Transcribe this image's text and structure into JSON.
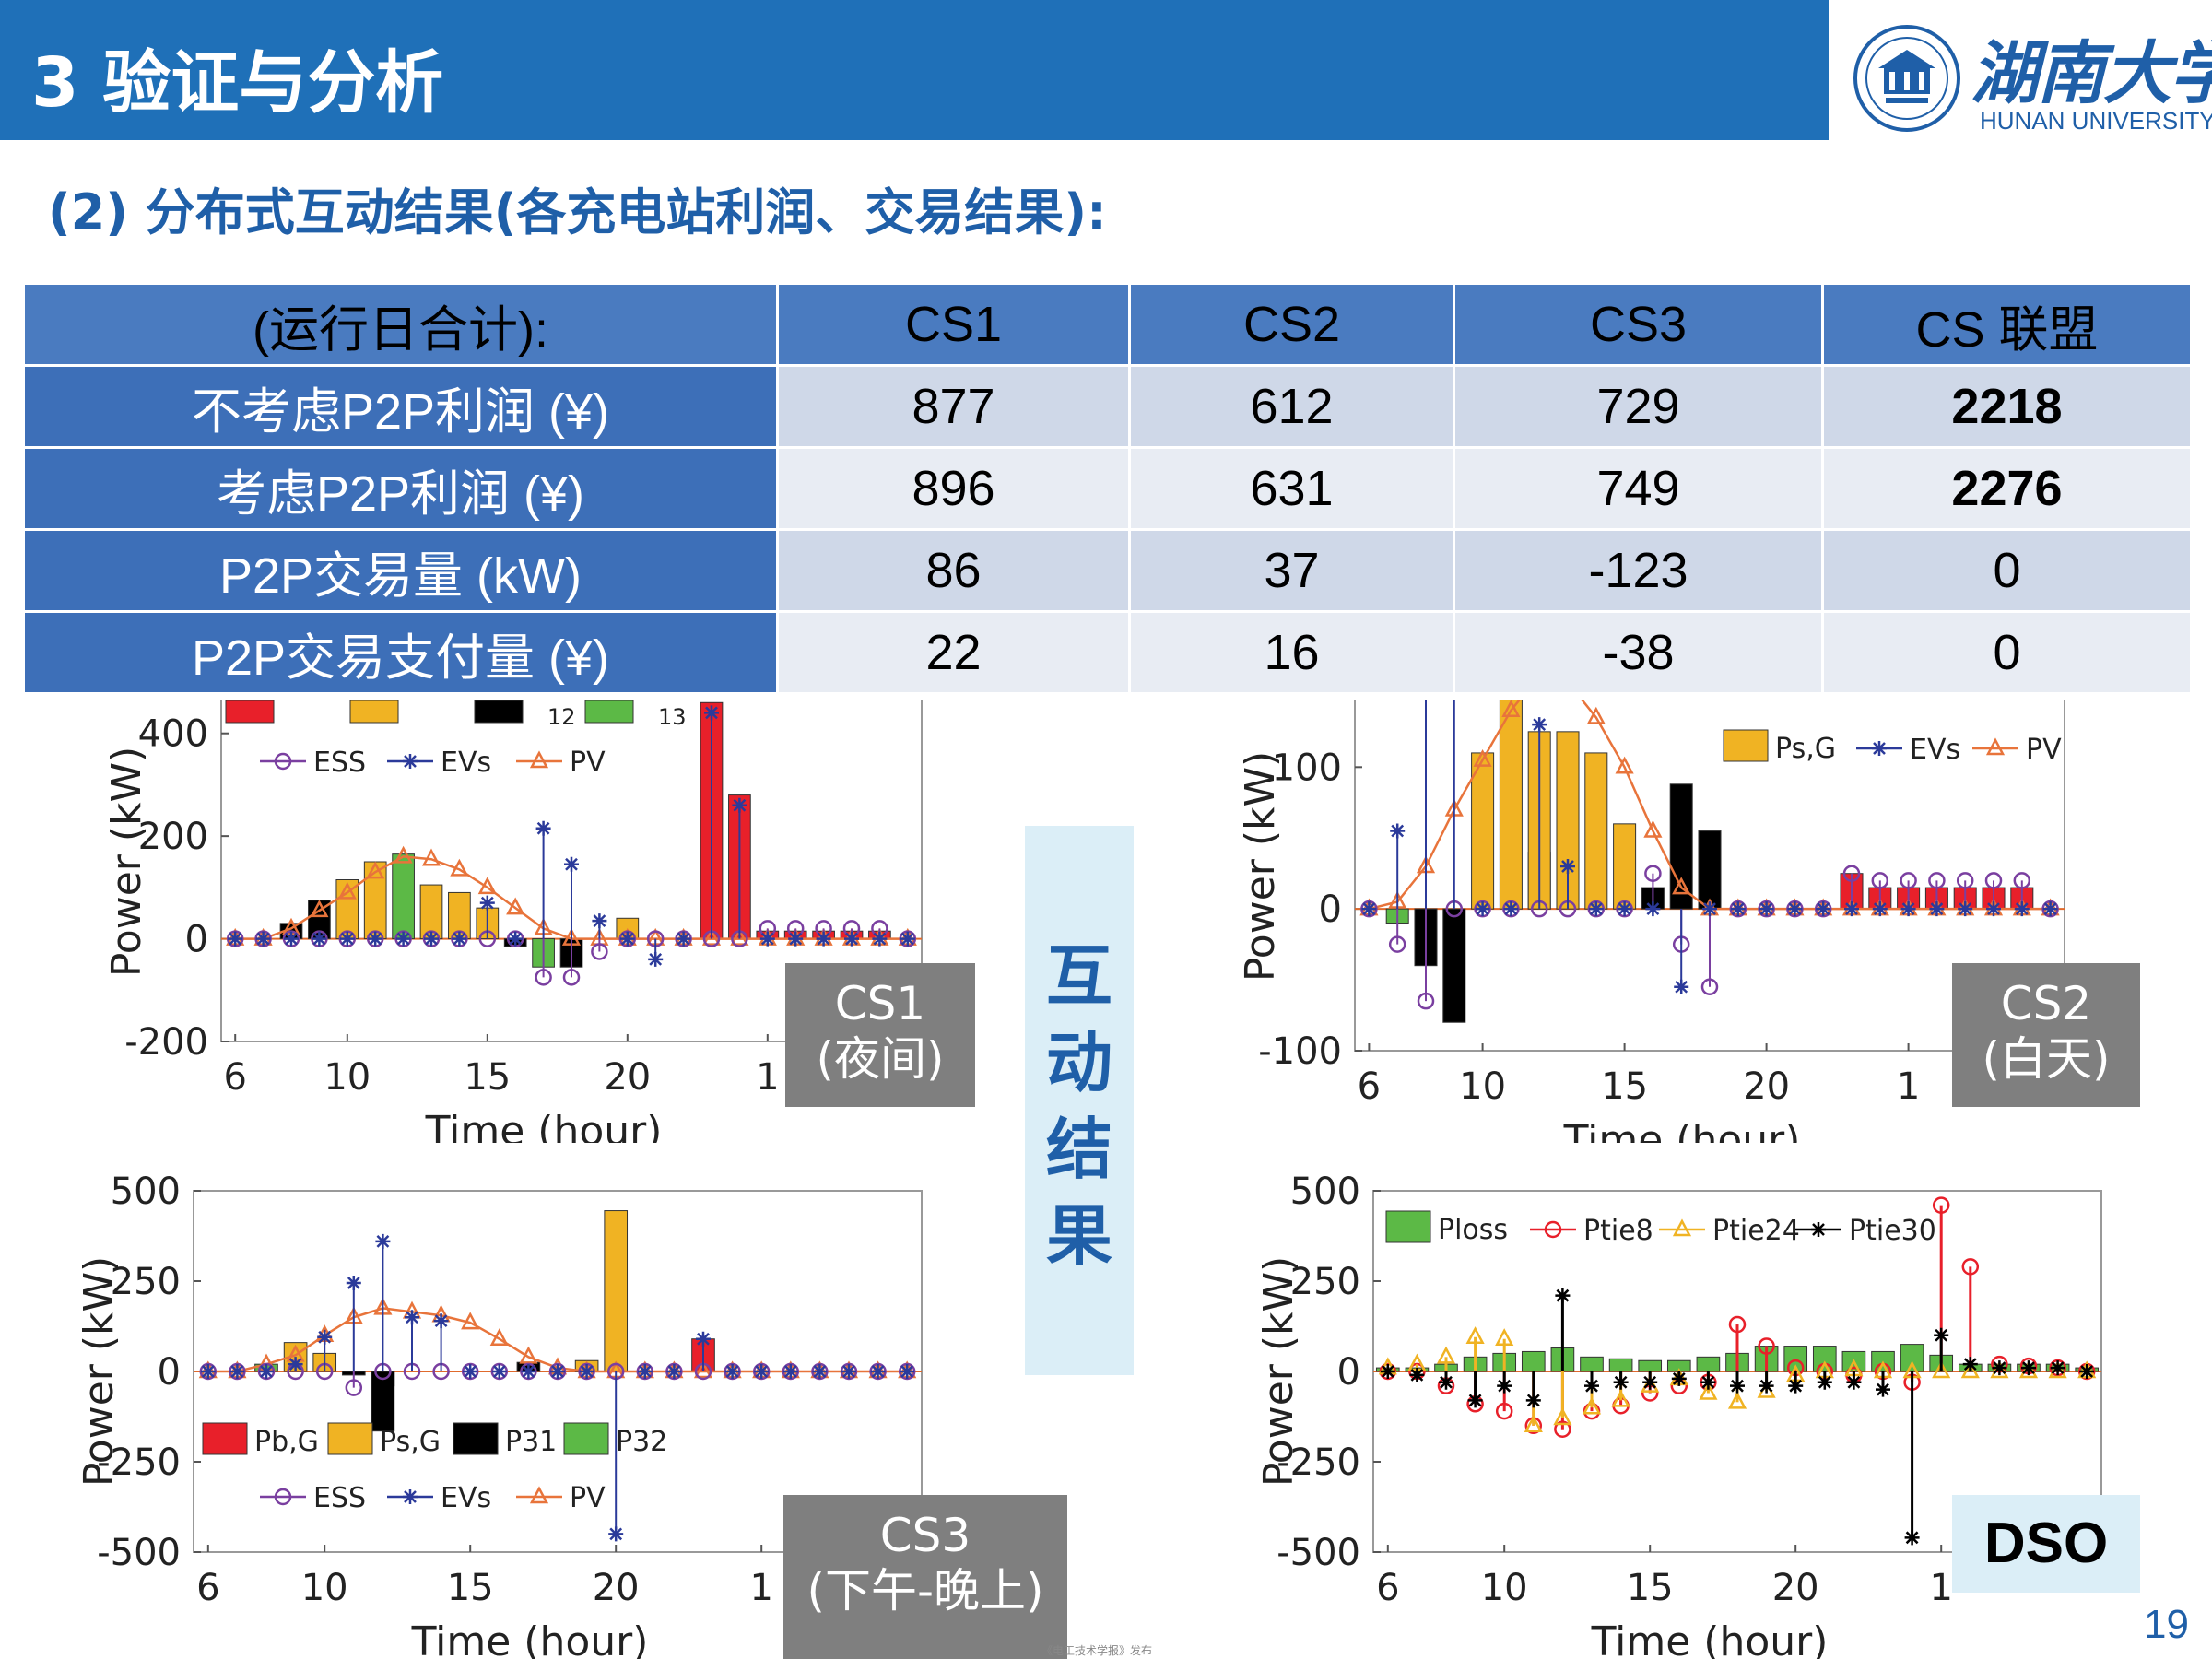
{
  "header": {
    "title": "3 验证与分析"
  },
  "logo": {
    "cn": "湖南大学",
    "en": "HUNAN UNIVERSITY"
  },
  "subtitle": "(2) 分布式互动结果(各充电站利润、交易结果):",
  "table": {
    "columns": [
      "(运行日合计):",
      "CS1",
      "CS2",
      "CS3",
      "CS 联盟"
    ],
    "rows": [
      {
        "label": "不考虑P2P利润 (¥)",
        "values": [
          "877",
          "612",
          "729",
          "2218"
        ]
      },
      {
        "label": "考虑P2P利润 (¥)",
        "values": [
          "896",
          "631",
          "749",
          "2276"
        ]
      },
      {
        "label": "P2P交易量 (kW)",
        "values": [
          "86",
          "37",
          "-123",
          "0"
        ]
      },
      {
        "label": "P2P交易支付量 (¥)",
        "values": [
          "22",
          "16",
          "-38",
          "0"
        ]
      }
    ]
  },
  "center_label": [
    "互",
    "动",
    "结",
    "果"
  ],
  "panels": {
    "cs1": {
      "line1": "CS1",
      "line2": "(夜间)"
    },
    "cs2": {
      "line1": "CS2",
      "line2": "(白天)"
    },
    "cs3": {
      "line1": "CS3",
      "line2": "(下午-晚上)"
    },
    "dso": {
      "label": "DSO"
    }
  },
  "page_number": "19",
  "footer": "《电工技术学报》发布",
  "colors": {
    "header": "#1f70b8",
    "red": "#e8202a",
    "yellow": "#f0b323",
    "black": "#000000",
    "green": "#5cb946",
    "purple": "#7a3fa0",
    "blue": "#2b3a9a",
    "orange": "#e8743b"
  },
  "chart_data": [
    {
      "id": "cs1",
      "type": "bar",
      "xlabel": "Time (hour)",
      "ylabel": "Power (kW)",
      "xticks": [
        "6",
        "10",
        "15",
        "20",
        "1"
      ],
      "yticks": [
        "-200",
        "0",
        "200",
        "400"
      ],
      "ylim": [
        -200,
        500
      ],
      "legend": [
        "ESS",
        "EVs",
        "PV"
      ],
      "legend_partial": [
        "12",
        "13"
      ],
      "hours": [
        6,
        7,
        8,
        9,
        10,
        11,
        12,
        13,
        14,
        15,
        16,
        17,
        18,
        19,
        20,
        21,
        22,
        23,
        24,
        25,
        26,
        27,
        28,
        29,
        30
      ],
      "bars": {
        "black": {
          "8": 30,
          "9": 75,
          "16": -15,
          "18": -55
        },
        "yellow": {
          "10": 115,
          "11": 150,
          "13": 105,
          "14": 90,
          "15": 60,
          "20": 40
        },
        "green": {
          "12": 165,
          "17": -55
        },
        "red": {
          "23": 460,
          "24": 280,
          "25": 15,
          "26": 15,
          "27": 15,
          "28": 15,
          "29": 15
        }
      },
      "ess": {
        "17": -75,
        "18": -75,
        "19": -25,
        "25": 20,
        "26": 20,
        "27": 20,
        "28": 20,
        "29": 20
      },
      "evs": {
        "15": 70,
        "17": 215,
        "18": 145,
        "19": 35,
        "21": -40,
        "23": 440,
        "24": 260
      },
      "pv": [
        0,
        0,
        20,
        55,
        90,
        130,
        160,
        155,
        135,
        100,
        60,
        20,
        0,
        0,
        0,
        0,
        0,
        0,
        0,
        0,
        0,
        0,
        0,
        0,
        0
      ]
    },
    {
      "id": "cs2",
      "type": "bar",
      "xlabel": "Time (hour)",
      "ylabel": "Power (kW)",
      "xticks": [
        "6",
        "10",
        "15",
        "20",
        "1"
      ],
      "yticks": [
        "-100",
        "0",
        "100"
      ],
      "ylim": [
        -100,
        160
      ],
      "legend": [
        "Ps,G",
        "EVs",
        "PV"
      ],
      "hours": [
        6,
        7,
        8,
        9,
        10,
        11,
        12,
        13,
        14,
        15,
        16,
        17,
        18,
        19,
        20,
        21,
        22,
        23,
        24,
        25,
        26,
        27,
        28,
        29,
        30
      ],
      "bars": {
        "green": {
          "7": -10,
          "8": -35,
          "12": 40
        },
        "black": {
          "8": -40,
          "9": -80,
          "16": 15,
          "17": 88,
          "18": 55
        },
        "yellow": {
          "10": 110,
          "11": 160,
          "12": 125,
          "13": 125,
          "14": 110,
          "15": 60
        },
        "red": {
          "23": 25,
          "24": 15,
          "25": 15,
          "26": 15,
          "27": 15,
          "28": 15,
          "29": 15
        }
      },
      "ess": {
        "7": -25,
        "8": -65,
        "17": -25,
        "18": -55,
        "16": 25,
        "23": 25,
        "24": 20,
        "25": 20,
        "26": 20,
        "27": 20,
        "28": 20,
        "29": 20
      },
      "evs": {
        "7": 55,
        "8": 160,
        "9": 160,
        "12": 130,
        "13": 30,
        "17": -55
      },
      "pv": [
        0,
        5,
        30,
        70,
        105,
        140,
        165,
        160,
        135,
        100,
        55,
        15,
        0,
        0,
        0,
        0,
        0,
        0,
        0,
        0,
        0,
        0,
        0,
        0,
        0
      ]
    },
    {
      "id": "cs3",
      "type": "bar",
      "xlabel": "Time (hour)",
      "ylabel": "Power (kW)",
      "xticks": [
        "6",
        "10",
        "15",
        "20",
        "1"
      ],
      "yticks": [
        "-500",
        "-250",
        "0",
        "250",
        "500"
      ],
      "ylim": [
        -500,
        500
      ],
      "legend": [
        "Pb,G",
        "Ps,G",
        "P31",
        "P32",
        "ESS",
        "EVs",
        "PV"
      ],
      "hours": [
        6,
        7,
        8,
        9,
        10,
        11,
        12,
        13,
        14,
        15,
        16,
        17,
        18,
        19,
        20,
        21,
        22,
        23,
        24,
        25,
        26,
        27,
        28,
        29,
        30
      ],
      "bars": {
        "yellow": {
          "9": 80,
          "10": 50,
          "19": 30,
          "20": 445
        },
        "green": {
          "8": 20,
          "12": -40
        },
        "black": {
          "11": -10,
          "12": -165,
          "17": 25
        },
        "red": {
          "23": 90
        }
      },
      "ess": {
        "11": -45
      },
      "evs": {
        "9": 20,
        "10": 95,
        "11": 245,
        "12": 360,
        "13": 150,
        "14": 140,
        "20": -450,
        "23": 90
      },
      "pv": [
        0,
        0,
        20,
        45,
        100,
        150,
        175,
        165,
        155,
        135,
        90,
        40,
        10,
        0,
        0,
        0,
        0,
        0,
        0,
        0,
        0,
        0,
        0,
        0,
        0
      ]
    },
    {
      "id": "dso",
      "type": "bar",
      "xlabel": "Time (hour)",
      "ylabel": "Power (kW)",
      "xticks": [
        "6",
        "10",
        "15",
        "20",
        "1"
      ],
      "yticks": [
        "-500",
        "-250",
        "0",
        "250",
        "500"
      ],
      "ylim": [
        -500,
        500
      ],
      "legend": [
        "Ploss",
        "Ptie8",
        "Ptie24",
        "Ptie30"
      ],
      "hours": [
        6,
        7,
        8,
        9,
        10,
        11,
        12,
        13,
        14,
        15,
        16,
        17,
        18,
        19,
        20,
        21,
        22,
        23,
        24,
        25,
        26,
        27,
        28,
        29,
        30
      ],
      "ploss": [
        10,
        10,
        20,
        40,
        50,
        55,
        65,
        40,
        35,
        30,
        30,
        40,
        50,
        70,
        70,
        70,
        55,
        55,
        75,
        45,
        20,
        20,
        20,
        20,
        10
      ],
      "ptie8": [
        0,
        0,
        -40,
        -90,
        -110,
        -150,
        -160,
        -110,
        -95,
        -60,
        -40,
        -30,
        130,
        70,
        10,
        0,
        -10,
        0,
        -30,
        460,
        290,
        20,
        15,
        10,
        0
      ],
      "ptie24": [
        10,
        20,
        40,
        95,
        90,
        -150,
        -130,
        -100,
        -80,
        -40,
        -20,
        -60,
        -85,
        -55,
        -10,
        0,
        5,
        0,
        0,
        0,
        0,
        0,
        0,
        0,
        0
      ],
      "ptie30": [
        0,
        -10,
        -30,
        -80,
        -40,
        -80,
        210,
        -40,
        -30,
        -30,
        -20,
        -30,
        -40,
        -40,
        -40,
        -30,
        -30,
        -50,
        -460,
        100,
        20,
        10,
        10,
        10,
        0
      ]
    }
  ]
}
